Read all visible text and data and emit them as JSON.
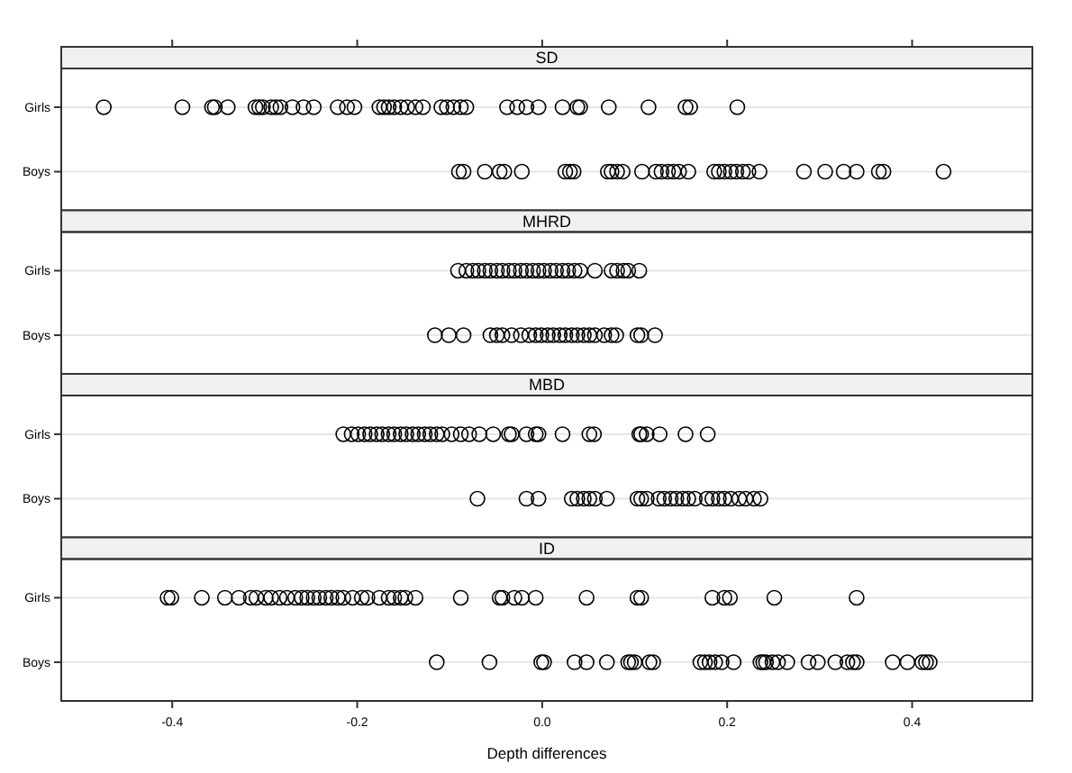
{
  "chart_data": [
    {
      "type": "scatter",
      "title": "SD",
      "orientation": "horizontal",
      "categories": [
        "Girls",
        "Boys"
      ],
      "xlim": [
        -0.52,
        0.53
      ],
      "xticks": [
        -0.4,
        -0.2,
        0,
        0.2,
        0.4
      ],
      "tick_labels": "y",
      "grid": "y",
      "marker": "circle",
      "series": [
        {
          "color": "#000000",
          "x": [
            "Girls",
            "Girls",
            "Girls",
            "Girls",
            "Girls",
            "Girls",
            "Girls",
            "Girls",
            "Girls",
            "Girls",
            "Girls",
            "Girls",
            "Girls",
            "Girls",
            "Girls",
            "Girls",
            "Girls",
            "Girls",
            "Girls",
            "Girls",
            "Girls",
            "Girls",
            "Girls",
            "Girls",
            "Girls",
            "Girls",
            "Girls",
            "Girls",
            "Girls",
            "Girls",
            "Girls",
            "Girls",
            "Girls",
            "Girls",
            "Girls",
            "Girls",
            "Girls",
            "Girls",
            "Girls",
            "Girls",
            "Girls",
            "Girls"
          ],
          "values": [
            -0.474,
            -0.389,
            -0.357,
            -0.354,
            -0.34,
            -0.31,
            -0.306,
            -0.302,
            -0.293,
            -0.288,
            -0.283,
            -0.27,
            -0.258,
            -0.247,
            -0.221,
            -0.211,
            -0.203,
            -0.176,
            -0.171,
            -0.166,
            -0.16,
            -0.153,
            -0.146,
            -0.137,
            -0.129,
            -0.109,
            -0.103,
            -0.096,
            -0.088,
            -0.082,
            -0.038,
            -0.027,
            -0.017,
            -0.004,
            0.022,
            0.038,
            0.041,
            0.072,
            0.115,
            0.155,
            0.16,
            0.211
          ]
        },
        {
          "color": "#000000",
          "x": [
            "Boys",
            "Boys",
            "Boys",
            "Boys",
            "Boys",
            "Boys",
            "Boys",
            "Boys",
            "Boys",
            "Boys",
            "Boys",
            "Boys",
            "Boys",
            "Boys",
            "Boys",
            "Boys",
            "Boys",
            "Boys",
            "Boys",
            "Boys",
            "Boys",
            "Boys",
            "Boys",
            "Boys",
            "Boys",
            "Boys",
            "Boys",
            "Boys",
            "Boys",
            "Boys",
            "Boys",
            "Boys",
            "Boys",
            "Boys",
            "Boys"
          ],
          "values": [
            -0.09,
            -0.085,
            -0.062,
            -0.046,
            -0.041,
            -0.022,
            0.025,
            0.03,
            0.034,
            0.071,
            0.075,
            0.081,
            0.087,
            0.108,
            0.123,
            0.129,
            0.136,
            0.142,
            0.148,
            0.158,
            0.186,
            0.191,
            0.197,
            0.204,
            0.21,
            0.217,
            0.223,
            0.235,
            0.283,
            0.306,
            0.326,
            0.34,
            0.364,
            0.369,
            0.434
          ]
        }
      ]
    },
    {
      "type": "scatter",
      "title": "MHRD",
      "orientation": "horizontal",
      "categories": [
        "Girls",
        "Boys"
      ],
      "xlim": [
        -0.52,
        0.53
      ],
      "tick_labels": "y",
      "grid": "y",
      "marker": "circle",
      "series": [
        {
          "color": "#000000",
          "x": [
            "Girls",
            "Girls",
            "Girls",
            "Girls",
            "Girls",
            "Girls",
            "Girls",
            "Girls",
            "Girls",
            "Girls",
            "Girls",
            "Girls",
            "Girls",
            "Girls",
            "Girls",
            "Girls",
            "Girls",
            "Girls",
            "Girls",
            "Girls",
            "Girls",
            "Girls",
            "Girls",
            "Girls",
            "Girls",
            "Girls",
            "Girls"
          ],
          "values": [
            -0.091,
            -0.082,
            -0.075,
            -0.069,
            -0.062,
            -0.056,
            -0.049,
            -0.043,
            -0.036,
            -0.03,
            -0.023,
            -0.017,
            -0.01,
            -0.004,
            0.002,
            0.009,
            0.015,
            0.022,
            0.028,
            0.035,
            0.041,
            0.057,
            0.075,
            0.081,
            0.088,
            0.093,
            0.105
          ]
        },
        {
          "color": "#000000",
          "x": [
            "Boys",
            "Boys",
            "Boys",
            "Boys",
            "Boys",
            "Boys",
            "Boys",
            "Boys",
            "Boys",
            "Boys",
            "Boys",
            "Boys",
            "Boys",
            "Boys",
            "Boys",
            "Boys",
            "Boys",
            "Boys",
            "Boys",
            "Boys",
            "Boys",
            "Boys",
            "Boys",
            "Boys",
            "Boys",
            "Boys"
          ],
          "values": [
            -0.116,
            -0.101,
            -0.085,
            -0.056,
            -0.049,
            -0.043,
            -0.033,
            -0.023,
            -0.014,
            -0.007,
            -0.001,
            0.006,
            0.012,
            0.019,
            0.025,
            0.032,
            0.038,
            0.045,
            0.051,
            0.057,
            0.067,
            0.075,
            0.08,
            0.103,
            0.107,
            0.122
          ]
        }
      ]
    },
    {
      "type": "scatter",
      "title": "MBD",
      "orientation": "horizontal",
      "categories": [
        "Girls",
        "Boys"
      ],
      "xlim": [
        -0.52,
        0.53
      ],
      "tick_labels": "y",
      "grid": "y",
      "marker": "circle",
      "series": [
        {
          "color": "#000000",
          "x": [
            "Girls",
            "Girls",
            "Girls",
            "Girls",
            "Girls",
            "Girls",
            "Girls",
            "Girls",
            "Girls",
            "Girls",
            "Girls",
            "Girls",
            "Girls",
            "Girls",
            "Girls",
            "Girls",
            "Girls",
            "Girls",
            "Girls",
            "Girls",
            "Girls",
            "Girls",
            "Girls",
            "Girls",
            "Girls",
            "Girls",
            "Girls",
            "Girls",
            "Girls",
            "Girls",
            "Girls",
            "Girls",
            "Girls",
            "Girls",
            "Girls",
            "Girls"
          ],
          "values": [
            -0.215,
            -0.206,
            -0.199,
            -0.192,
            -0.186,
            -0.179,
            -0.173,
            -0.166,
            -0.16,
            -0.153,
            -0.147,
            -0.14,
            -0.134,
            -0.127,
            -0.121,
            -0.114,
            -0.108,
            -0.098,
            -0.088,
            -0.079,
            -0.068,
            -0.053,
            -0.036,
            -0.033,
            -0.017,
            -0.007,
            -0.004,
            0.022,
            0.051,
            0.056,
            0.105,
            0.107,
            0.113,
            0.127,
            0.155,
            0.179
          ]
        },
        {
          "color": "#000000",
          "x": [
            "Boys",
            "Boys",
            "Boys",
            "Boys",
            "Boys",
            "Boys",
            "Boys",
            "Boys",
            "Boys",
            "Boys",
            "Boys",
            "Boys",
            "Boys",
            "Boys",
            "Boys",
            "Boys",
            "Boys",
            "Boys",
            "Boys",
            "Boys",
            "Boys",
            "Boys",
            "Boys",
            "Boys",
            "Boys",
            "Boys",
            "Boys",
            "Boys"
          ],
          "values": [
            -0.07,
            -0.017,
            -0.004,
            0.032,
            0.038,
            0.045,
            0.051,
            0.057,
            0.07,
            0.103,
            0.107,
            0.113,
            0.126,
            0.132,
            0.139,
            0.145,
            0.152,
            0.158,
            0.165,
            0.178,
            0.184,
            0.191,
            0.197,
            0.204,
            0.213,
            0.22,
            0.229,
            0.236
          ]
        }
      ]
    },
    {
      "type": "scatter",
      "title": "ID",
      "xlabel": "Depth differences",
      "orientation": "horizontal",
      "categories": [
        "Girls",
        "Boys"
      ],
      "xlim": [
        -0.52,
        0.53
      ],
      "xticks": [
        -0.4,
        -0.2,
        {
          "value": 0,
          "label": "0.0"
        },
        0.2,
        0.4
      ],
      "grid": "y",
      "marker": "circle",
      "series": [
        {
          "color": "#000000",
          "x": [
            "Girls",
            "Girls",
            "Girls",
            "Girls",
            "Girls",
            "Girls",
            "Girls",
            "Girls",
            "Girls",
            "Girls",
            "Girls",
            "Girls",
            "Girls",
            "Girls",
            "Girls",
            "Girls",
            "Girls",
            "Girls",
            "Girls",
            "Girls",
            "Girls",
            "Girls",
            "Girls",
            "Girls",
            "Girls",
            "Girls",
            "Girls",
            "Girls",
            "Girls",
            "Girls",
            "Girls",
            "Girls",
            "Girls",
            "Girls",
            "Girls",
            "Girls",
            "Girls",
            "Girls",
            "Girls",
            "Girls",
            "Girls",
            "Girls",
            "Girls"
          ],
          "values": [
            -0.405,
            -0.401,
            -0.368,
            -0.343,
            -0.328,
            -0.315,
            -0.309,
            -0.299,
            -0.293,
            -0.284,
            -0.276,
            -0.267,
            -0.26,
            -0.254,
            -0.247,
            -0.241,
            -0.234,
            -0.228,
            -0.221,
            -0.215,
            -0.205,
            -0.195,
            -0.189,
            -0.176,
            -0.166,
            -0.16,
            -0.153,
            -0.148,
            -0.137,
            -0.088,
            -0.046,
            -0.043,
            -0.03,
            -0.022,
            -0.007,
            0.048,
            0.103,
            0.107,
            0.184,
            0.197,
            0.203,
            0.251,
            0.34
          ]
        },
        {
          "color": "#000000",
          "x": [
            "Boys",
            "Boys",
            "Boys",
            "Boys",
            "Boys",
            "Boys",
            "Boys",
            "Boys",
            "Boys",
            "Boys",
            "Boys",
            "Boys",
            "Boys",
            "Boys",
            "Boys",
            "Boys",
            "Boys",
            "Boys",
            "Boys",
            "Boys",
            "Boys",
            "Boys",
            "Boys",
            "Boys",
            "Boys",
            "Boys",
            "Boys",
            "Boys",
            "Boys",
            "Boys",
            "Boys",
            "Boys",
            "Boys",
            "Boys",
            "Boys"
          ],
          "values": [
            -0.114,
            -0.057,
            -0.001,
            0.002,
            0.035,
            0.048,
            0.07,
            0.093,
            0.096,
            0.1,
            0.116,
            0.12,
            0.171,
            0.176,
            0.181,
            0.187,
            0.194,
            0.207,
            0.236,
            0.239,
            0.242,
            0.249,
            0.255,
            0.265,
            0.288,
            0.298,
            0.317,
            0.33,
            0.336,
            0.34,
            0.379,
            0.395,
            0.411,
            0.415,
            0.419
          ]
        }
      ]
    }
  ]
}
